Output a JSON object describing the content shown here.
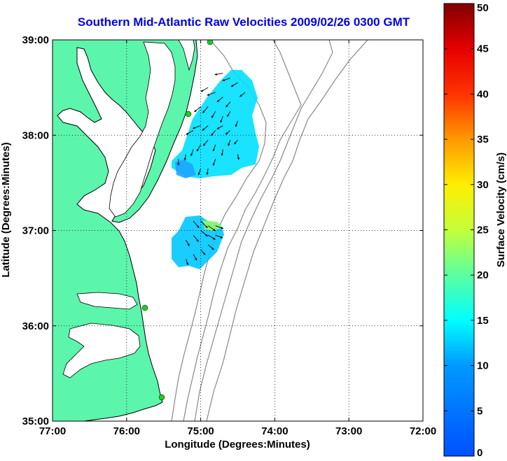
{
  "chart_data": {
    "type": "heatmap",
    "title": "Southern Mid-Atlantic Raw Velocities 2009/02/26 0300 GMT",
    "xlabel": "Longitude (Degrees:Minutes)",
    "ylabel": "Latitude (Degrees:Minutes)",
    "colorbar_label": "Surface Velocity (cm/s)",
    "xlim": [
      -77,
      -72
    ],
    "ylim": [
      35,
      39
    ],
    "x_ticks": [
      {
        "value": -77,
        "label": "77:00"
      },
      {
        "value": -76,
        "label": "76:00"
      },
      {
        "value": -75,
        "label": "75:00"
      },
      {
        "value": -74,
        "label": "74:00"
      },
      {
        "value": -73,
        "label": "73:00"
      },
      {
        "value": -72,
        "label": "72:00"
      }
    ],
    "y_ticks": [
      {
        "value": 39,
        "label": "39:00"
      },
      {
        "value": 38,
        "label": "38:00"
      },
      {
        "value": 37,
        "label": "37:00"
      },
      {
        "value": 36,
        "label": "36:00"
      },
      {
        "value": 35,
        "label": "35:00"
      }
    ],
    "colorbar": {
      "min": 0,
      "max": 50,
      "ticks": [
        "0",
        "5",
        "10",
        "15",
        "20",
        "25",
        "30",
        "35",
        "40",
        "45",
        "50"
      ]
    },
    "grid": true,
    "land_color": "#5cf5ac",
    "field_north": [
      [
        -75.0,
        37.65,
        8,
        200,
        10
      ],
      [
        -74.9,
        37.65,
        6,
        190,
        9
      ],
      [
        -74.8,
        37.75,
        8,
        200,
        10
      ],
      [
        -75.3,
        37.75,
        8,
        180,
        9
      ],
      [
        -75.2,
        37.8,
        9,
        190,
        9
      ],
      [
        -75.1,
        37.85,
        11,
        200,
        10
      ],
      [
        -75.0,
        37.9,
        11,
        210,
        11
      ],
      [
        -74.9,
        37.95,
        11,
        220,
        11
      ],
      [
        -74.8,
        37.9,
        10,
        200,
        10
      ],
      [
        -74.7,
        37.85,
        9,
        190,
        9
      ],
      [
        -74.6,
        37.95,
        8,
        200,
        9
      ],
      [
        -74.5,
        37.8,
        6,
        170,
        8
      ],
      [
        -75.1,
        38.05,
        12,
        240,
        12
      ],
      [
        -75.0,
        38.1,
        12,
        250,
        12
      ],
      [
        -74.9,
        38.1,
        11,
        230,
        11
      ],
      [
        -74.8,
        38.05,
        10,
        220,
        10
      ],
      [
        -74.7,
        38.1,
        10,
        240,
        10
      ],
      [
        -74.6,
        38.05,
        8,
        230,
        9
      ],
      [
        -74.5,
        37.95,
        7,
        220,
        8
      ],
      [
        -75.0,
        38.3,
        13,
        230,
        12
      ],
      [
        -74.9,
        38.3,
        12,
        220,
        12
      ],
      [
        -74.8,
        38.25,
        11,
        210,
        11
      ],
      [
        -74.7,
        38.2,
        10,
        200,
        10
      ],
      [
        -74.6,
        38.25,
        9,
        210,
        9
      ],
      [
        -74.5,
        38.15,
        8,
        200,
        9
      ],
      [
        -74.9,
        38.5,
        11,
        240,
        12
      ],
      [
        -74.8,
        38.45,
        12,
        250,
        13
      ],
      [
        -74.7,
        38.4,
        10,
        230,
        11
      ],
      [
        -74.6,
        38.35,
        9,
        220,
        10
      ],
      [
        -74.7,
        38.65,
        13,
        260,
        12
      ],
      [
        -74.6,
        38.6,
        12,
        250,
        12
      ],
      [
        -74.5,
        38.55,
        10,
        240,
        11
      ],
      [
        -74.4,
        38.45,
        9,
        230,
        10
      ]
    ],
    "field_south": [
      [
        -75.2,
        36.7,
        7,
        160,
        9
      ],
      [
        -75.1,
        36.75,
        8,
        150,
        10
      ],
      [
        -75.0,
        36.8,
        9,
        140,
        10
      ],
      [
        -74.9,
        36.85,
        10,
        130,
        11
      ],
      [
        -75.2,
        36.9,
        8,
        150,
        10
      ],
      [
        -75.1,
        36.95,
        11,
        140,
        12
      ],
      [
        -75.0,
        37.0,
        12,
        130,
        13
      ],
      [
        -74.9,
        36.95,
        11,
        120,
        12
      ],
      [
        -74.8,
        36.95,
        10,
        110,
        11
      ],
      [
        -75.1,
        37.1,
        13,
        140,
        13
      ],
      [
        -75.0,
        37.1,
        16,
        135,
        14
      ],
      [
        -74.9,
        37.05,
        14,
        125,
        13
      ],
      [
        -74.8,
        37.05,
        20,
        110,
        12
      ]
    ]
  }
}
